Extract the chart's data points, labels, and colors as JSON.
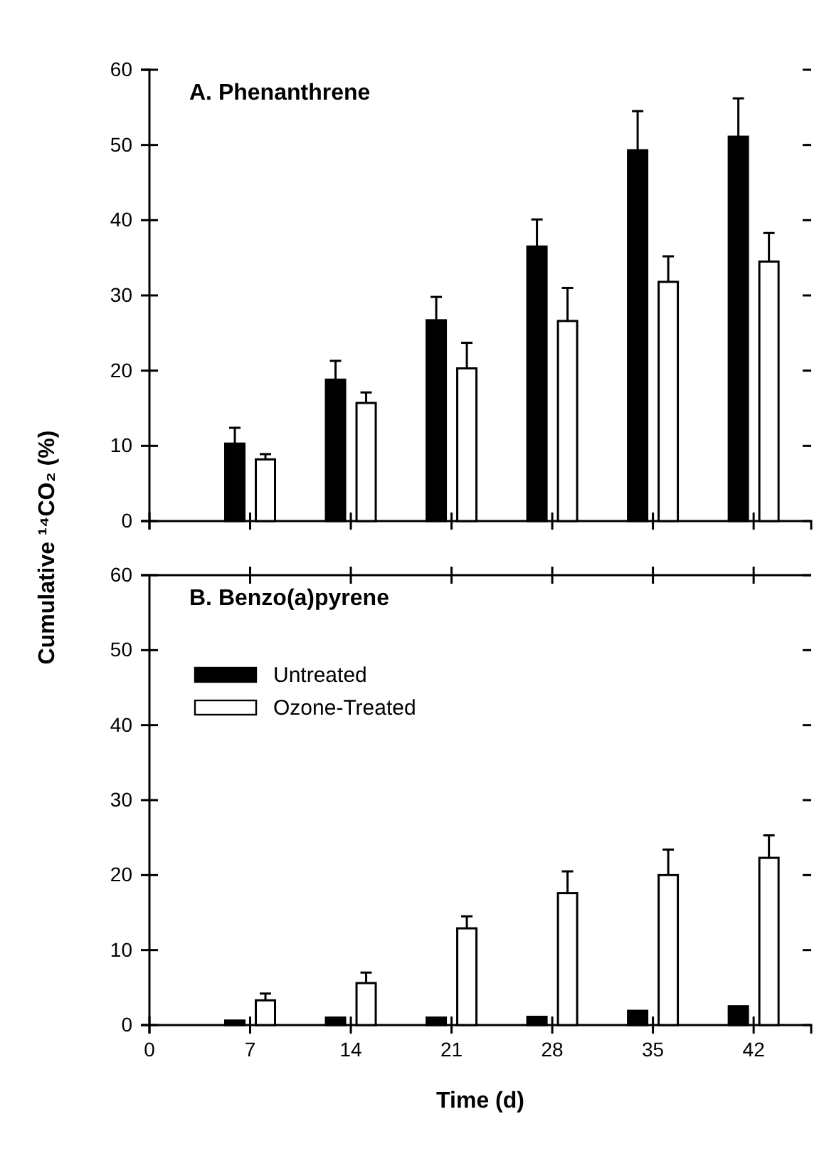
{
  "chart_data": [
    {
      "type": "bar",
      "title": "A. Phenanthrene",
      "ylabel": "Cumulative ¹⁴CO₂ (%)",
      "x": [
        7,
        14,
        21,
        28,
        35,
        42
      ],
      "xlim": [
        0,
        46
      ],
      "xticks": [
        0,
        7,
        14,
        21,
        28,
        35,
        42
      ],
      "ylim": [
        0,
        60
      ],
      "yticks": [
        0,
        10,
        20,
        30,
        40,
        50,
        60
      ],
      "tick_labels": "y",
      "grid": false,
      "legend": false,
      "series": [
        {
          "color": "#000000",
          "values": [
            10.3,
            18.8,
            26.7,
            36.5,
            49.3,
            51.1
          ],
          "errors": [
            [
              10.3,
              12.4
            ],
            [
              18.8,
              21.3
            ],
            [
              26.7,
              29.8
            ],
            [
              36.5,
              40.1
            ],
            [
              49.3,
              54.5
            ],
            [
              51.1,
              56.2
            ]
          ]
        },
        {
          "color": "#ffffff",
          "values": [
            8.2,
            15.7,
            20.3,
            26.6,
            31.8,
            34.5
          ],
          "errors": [
            [
              8.2,
              8.9
            ],
            [
              15.7,
              17.1
            ],
            [
              20.3,
              23.7
            ],
            [
              26.6,
              31.0
            ],
            [
              31.8,
              35.2
            ],
            [
              34.5,
              38.3
            ]
          ]
        }
      ]
    },
    {
      "type": "bar",
      "title": "B. Benzo(a)pyrene",
      "xlabel": "Time (d)",
      "x": [
        7,
        14,
        21,
        28,
        35,
        42
      ],
      "xlim": [
        0,
        46
      ],
      "xticks": [
        0,
        7,
        14,
        21,
        28,
        35,
        42
      ],
      "ylim": [
        0,
        60
      ],
      "yticks": [
        0,
        10,
        20,
        30,
        40,
        50,
        60
      ],
      "grid": false,
      "legend": "top left",
      "series": [
        {
          "name": "Untreated",
          "color": "#000000",
          "values": [
            0.6,
            1.0,
            1.0,
            1.1,
            1.9,
            2.5
          ]
        },
        {
          "name": "Ozone-Treated",
          "color": "#ffffff",
          "values": [
            3.3,
            5.6,
            12.9,
            17.6,
            20.0,
            22.3
          ],
          "errors": [
            [
              3.3,
              4.2
            ],
            [
              5.6,
              7.0
            ],
            [
              12.9,
              14.5
            ],
            [
              17.6,
              20.5
            ],
            [
              20.0,
              23.4
            ],
            [
              22.3,
              25.3
            ]
          ]
        }
      ]
    }
  ]
}
